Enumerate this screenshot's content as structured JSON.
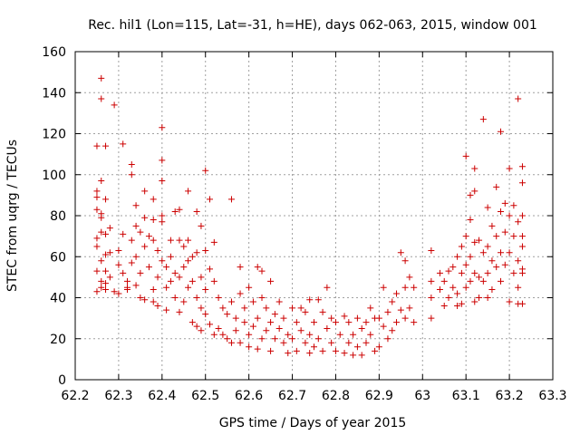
{
  "chart_data": {
    "type": "scatter",
    "title": "Rec. hil1 (Lon=115, Lat=-31, h=HE), days 062-063, 2015, window 001",
    "xlabel": "GPS time / Days of year 2015",
    "ylabel": "STEC from uqrg / TECUs",
    "xlim": [
      62.2,
      63.3
    ],
    "ylim": [
      0,
      160
    ],
    "x_ticks": [
      "62.2",
      "62.3",
      "62.4",
      "62.5",
      "62.6",
      "62.7",
      "62.8",
      "62.9",
      "63",
      "63.1",
      "63.2",
      "63.3"
    ],
    "y_ticks": [
      "0",
      "20",
      "40",
      "60",
      "80",
      "100",
      "120",
      "140",
      "160"
    ],
    "grid": true,
    "marker": "plus",
    "color": "#cc0000",
    "series": [
      {
        "points": [
          [
            62.25,
            114
          ],
          [
            62.25,
            92
          ],
          [
            62.25,
            89
          ],
          [
            62.25,
            83
          ],
          [
            62.25,
            69
          ],
          [
            62.25,
            65
          ],
          [
            62.25,
            53
          ],
          [
            62.25,
            43
          ],
          [
            62.26,
            147
          ],
          [
            62.26,
            137
          ],
          [
            62.26,
            97
          ],
          [
            62.26,
            81
          ],
          [
            62.26,
            79
          ],
          [
            62.26,
            72
          ],
          [
            62.26,
            58
          ],
          [
            62.26,
            48
          ],
          [
            62.26,
            45
          ],
          [
            62.27,
            114
          ],
          [
            62.27,
            88
          ],
          [
            62.27,
            71
          ],
          [
            62.27,
            61
          ],
          [
            62.27,
            53
          ],
          [
            62.27,
            47
          ],
          [
            62.27,
            44
          ],
          [
            62.29,
            134
          ],
          [
            62.28,
            74
          ],
          [
            62.28,
            62
          ],
          [
            62.28,
            50
          ],
          [
            62.29,
            43
          ],
          [
            62.3,
            42
          ],
          [
            62.3,
            56
          ],
          [
            62.3,
            63
          ],
          [
            62.31,
            115
          ],
          [
            62.31,
            71
          ],
          [
            62.31,
            52
          ],
          [
            62.32,
            48
          ],
          [
            62.32,
            45
          ],
          [
            62.32,
            44
          ],
          [
            62.33,
            105
          ],
          [
            62.33,
            100
          ],
          [
            62.33,
            68
          ],
          [
            62.33,
            57
          ],
          [
            62.34,
            85
          ],
          [
            62.34,
            75
          ],
          [
            62.34,
            60
          ],
          [
            62.34,
            46
          ],
          [
            62.35,
            72
          ],
          [
            62.35,
            52
          ],
          [
            62.35,
            40
          ],
          [
            62.36,
            92
          ],
          [
            62.36,
            79
          ],
          [
            62.36,
            65
          ],
          [
            62.36,
            39
          ],
          [
            62.37,
            70
          ],
          [
            62.37,
            55
          ],
          [
            62.38,
            88
          ],
          [
            62.38,
            78
          ],
          [
            62.38,
            68
          ],
          [
            62.38,
            44
          ],
          [
            62.38,
            38
          ],
          [
            62.39,
            63
          ],
          [
            62.39,
            50
          ],
          [
            62.39,
            36
          ],
          [
            62.4,
            123
          ],
          [
            62.4,
            107
          ],
          [
            62.4,
            97
          ],
          [
            62.4,
            80
          ],
          [
            62.4,
            77
          ],
          [
            62.4,
            58
          ],
          [
            62.41,
            55
          ],
          [
            62.41,
            45
          ],
          [
            62.41,
            34
          ],
          [
            62.42,
            68
          ],
          [
            62.42,
            60
          ],
          [
            62.42,
            48
          ],
          [
            62.43,
            82
          ],
          [
            62.43,
            52
          ],
          [
            62.43,
            40
          ],
          [
            62.44,
            83
          ],
          [
            62.44,
            68
          ],
          [
            62.44,
            50
          ],
          [
            62.44,
            33
          ],
          [
            62.45,
            65
          ],
          [
            62.45,
            55
          ],
          [
            62.45,
            38
          ],
          [
            62.46,
            92
          ],
          [
            62.46,
            68
          ],
          [
            62.46,
            58
          ],
          [
            62.46,
            45
          ],
          [
            62.47,
            60
          ],
          [
            62.47,
            48
          ],
          [
            62.47,
            28
          ],
          [
            62.48,
            82
          ],
          [
            62.48,
            62
          ],
          [
            62.48,
            40
          ],
          [
            62.48,
            26
          ],
          [
            62.49,
            75
          ],
          [
            62.49,
            50
          ],
          [
            62.49,
            35
          ],
          [
            62.49,
            24
          ],
          [
            62.5,
            102
          ],
          [
            62.5,
            63
          ],
          [
            62.5,
            44
          ],
          [
            62.5,
            32
          ],
          [
            62.51,
            88
          ],
          [
            62.51,
            54
          ],
          [
            62.51,
            27
          ],
          [
            62.52,
            67
          ],
          [
            62.52,
            48
          ],
          [
            62.52,
            22
          ],
          [
            62.53,
            40
          ],
          [
            62.53,
            25
          ],
          [
            62.54,
            35
          ],
          [
            62.54,
            22
          ],
          [
            62.55,
            32
          ],
          [
            62.55,
            20
          ],
          [
            62.56,
            88
          ],
          [
            62.56,
            38
          ],
          [
            62.56,
            18
          ],
          [
            62.57,
            30
          ],
          [
            62.57,
            24
          ],
          [
            62.58,
            55
          ],
          [
            62.58,
            42
          ],
          [
            62.58,
            18
          ],
          [
            62.59,
            35
          ],
          [
            62.59,
            28
          ],
          [
            62.6,
            45
          ],
          [
            62.6,
            22
          ],
          [
            62.6,
            16
          ],
          [
            62.61,
            38
          ],
          [
            62.61,
            26
          ],
          [
            62.62,
            55
          ],
          [
            62.62,
            30
          ],
          [
            62.62,
            15
          ],
          [
            62.63,
            53
          ],
          [
            62.63,
            40
          ],
          [
            62.63,
            20
          ],
          [
            62.64,
            35
          ],
          [
            62.64,
            24
          ],
          [
            62.65,
            48
          ],
          [
            62.65,
            28
          ],
          [
            62.65,
            14
          ],
          [
            62.66,
            32
          ],
          [
            62.66,
            20
          ],
          [
            62.67,
            38
          ],
          [
            62.67,
            25
          ],
          [
            62.68,
            30
          ],
          [
            62.68,
            18
          ],
          [
            62.69,
            22
          ],
          [
            62.69,
            13
          ],
          [
            62.7,
            35
          ],
          [
            62.7,
            20
          ],
          [
            62.71,
            28
          ],
          [
            62.71,
            14
          ],
          [
            62.72,
            35
          ],
          [
            62.72,
            24
          ],
          [
            62.73,
            33
          ],
          [
            62.73,
            18
          ],
          [
            62.74,
            39
          ],
          [
            62.74,
            22
          ],
          [
            62.74,
            13
          ],
          [
            62.75,
            28
          ],
          [
            62.75,
            16
          ],
          [
            62.76,
            39
          ],
          [
            62.76,
            20
          ],
          [
            62.77,
            33
          ],
          [
            62.77,
            14
          ],
          [
            62.78,
            45
          ],
          [
            62.78,
            25
          ],
          [
            62.79,
            30
          ],
          [
            62.79,
            18
          ],
          [
            62.8,
            28
          ],
          [
            62.8,
            14
          ],
          [
            62.81,
            22
          ],
          [
            62.82,
            31
          ],
          [
            62.82,
            13
          ],
          [
            62.83,
            28
          ],
          [
            62.83,
            18
          ],
          [
            62.84,
            22
          ],
          [
            62.84,
            12
          ],
          [
            62.85,
            30
          ],
          [
            62.85,
            16
          ],
          [
            62.86,
            25
          ],
          [
            62.86,
            12
          ],
          [
            62.87,
            28
          ],
          [
            62.87,
            18
          ],
          [
            62.88,
            35
          ],
          [
            62.88,
            22
          ],
          [
            62.89,
            30
          ],
          [
            62.89,
            14
          ],
          [
            62.9,
            30
          ],
          [
            62.9,
            16
          ],
          [
            62.91,
            45
          ],
          [
            62.91,
            26
          ],
          [
            62.92,
            33
          ],
          [
            62.92,
            20
          ],
          [
            62.93,
            38
          ],
          [
            62.93,
            24
          ],
          [
            62.94,
            42
          ],
          [
            62.94,
            28
          ],
          [
            62.95,
            62
          ],
          [
            62.95,
            34
          ],
          [
            62.96,
            58
          ],
          [
            62.96,
            45
          ],
          [
            62.96,
            30
          ],
          [
            62.97,
            50
          ],
          [
            62.97,
            35
          ],
          [
            62.98,
            45
          ],
          [
            62.98,
            28
          ],
          [
            63.02,
            63
          ],
          [
            63.02,
            48
          ],
          [
            63.02,
            40
          ],
          [
            63.02,
            30
          ],
          [
            63.04,
            52
          ],
          [
            63.04,
            44
          ],
          [
            63.05,
            48
          ],
          [
            63.05,
            36
          ],
          [
            63.06,
            53
          ],
          [
            63.06,
            40
          ],
          [
            63.07,
            55
          ],
          [
            63.07,
            45
          ],
          [
            63.08,
            60
          ],
          [
            63.08,
            42
          ],
          [
            63.08,
            36
          ],
          [
            63.09,
            65
          ],
          [
            63.09,
            52
          ],
          [
            63.09,
            37
          ],
          [
            63.1,
            109
          ],
          [
            63.1,
            70
          ],
          [
            63.1,
            56
          ],
          [
            63.1,
            45
          ],
          [
            63.11,
            90
          ],
          [
            63.11,
            78
          ],
          [
            63.11,
            60
          ],
          [
            63.11,
            48
          ],
          [
            63.12,
            103
          ],
          [
            63.12,
            92
          ],
          [
            63.12,
            67
          ],
          [
            63.12,
            52
          ],
          [
            63.12,
            38
          ],
          [
            63.13,
            68
          ],
          [
            63.13,
            50
          ],
          [
            63.13,
            40
          ],
          [
            63.14,
            127
          ],
          [
            63.14,
            62
          ],
          [
            63.14,
            48
          ],
          [
            63.15,
            84
          ],
          [
            63.15,
            65
          ],
          [
            63.15,
            52
          ],
          [
            63.15,
            40
          ],
          [
            63.16,
            75
          ],
          [
            63.16,
            58
          ],
          [
            63.16,
            44
          ],
          [
            63.17,
            94
          ],
          [
            63.17,
            70
          ],
          [
            63.17,
            55
          ],
          [
            63.18,
            121
          ],
          [
            63.18,
            82
          ],
          [
            63.18,
            62
          ],
          [
            63.18,
            48
          ],
          [
            63.19,
            86
          ],
          [
            63.19,
            72
          ],
          [
            63.19,
            56
          ],
          [
            63.2,
            103
          ],
          [
            63.2,
            80
          ],
          [
            63.2,
            62
          ],
          [
            63.2,
            38
          ],
          [
            63.21,
            85
          ],
          [
            63.21,
            70
          ],
          [
            63.21,
            52
          ],
          [
            63.22,
            137
          ],
          [
            63.22,
            77
          ],
          [
            63.22,
            58
          ],
          [
            63.22,
            45
          ],
          [
            63.22,
            37
          ],
          [
            63.23,
            104
          ],
          [
            63.23,
            96
          ],
          [
            63.23,
            80
          ],
          [
            63.23,
            70
          ],
          [
            63.23,
            65
          ],
          [
            63.23,
            54
          ],
          [
            63.23,
            52
          ],
          [
            63.23,
            37
          ]
        ]
      }
    ]
  }
}
